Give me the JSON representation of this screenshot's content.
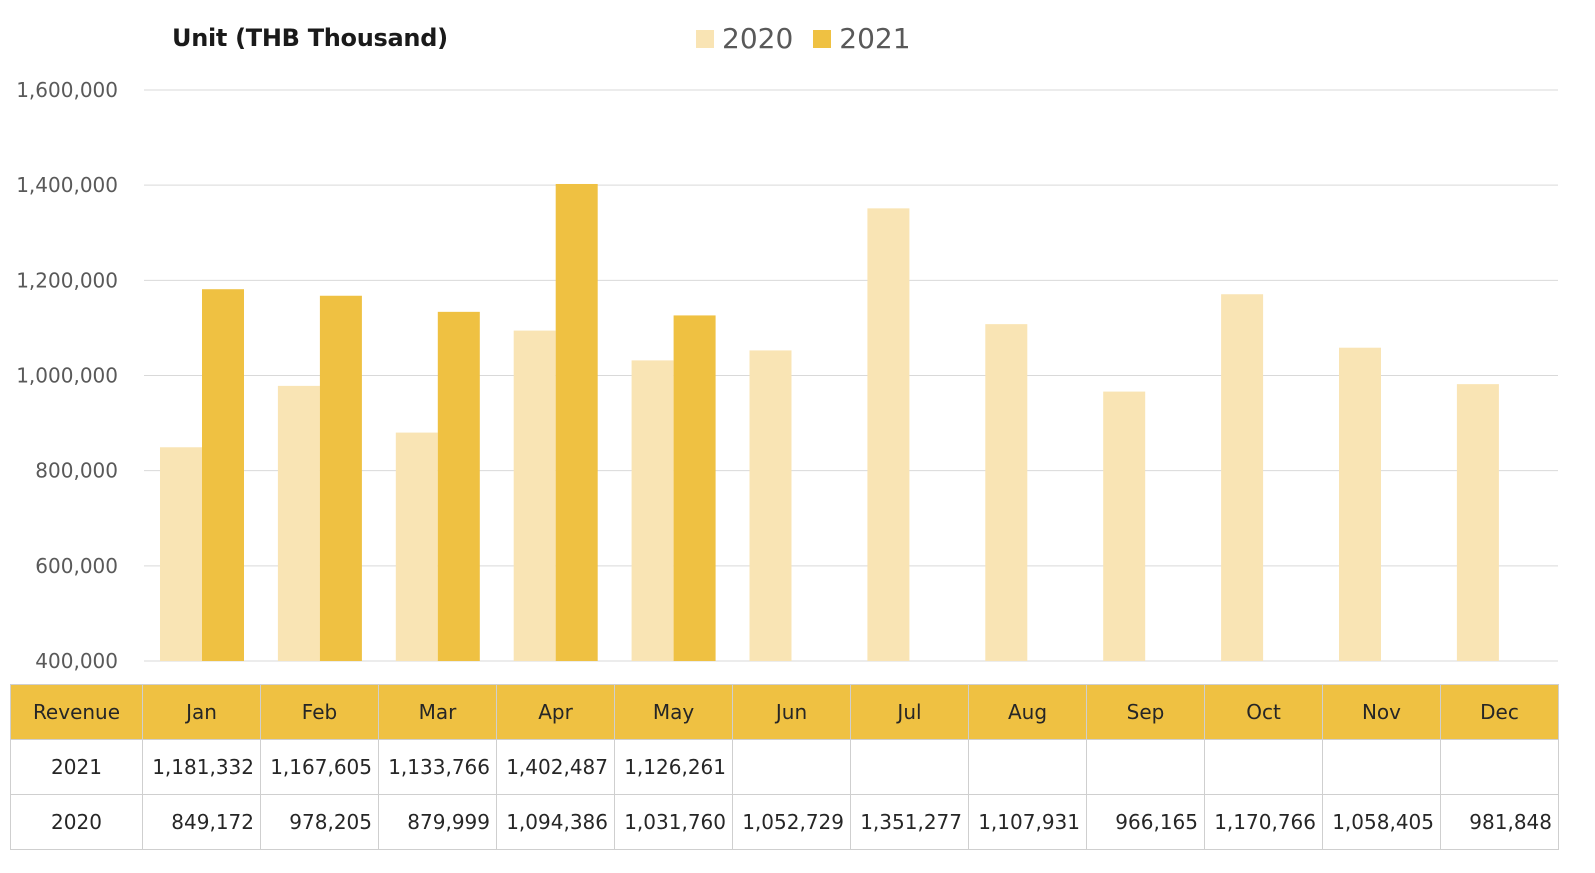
{
  "unit_label": "Unit (THB  Thousand)",
  "colors": {
    "series_2020": "#f9e4b4",
    "series_2021": "#efc142",
    "header_bg": "#efc142",
    "grid": "#d9d9d9",
    "axis_text": "#595959"
  },
  "legend": [
    "2020",
    "2021"
  ],
  "table": {
    "corner_label": "Revenue",
    "months": [
      "Jan",
      "Feb",
      "Mar",
      "Apr",
      "May",
      "Jun",
      "Jul",
      "Aug",
      "Sep",
      "Oct",
      "Nov",
      "Dec"
    ],
    "rows": [
      {
        "label": "2021",
        "cells": [
          "1,181,332",
          "1,167,605",
          "1,133,766",
          "1,402,487",
          "1,126,261",
          "",
          "",
          "",
          "",
          "",
          "",
          ""
        ]
      },
      {
        "label": "2020",
        "cells": [
          "849,172",
          "978,205",
          "879,999",
          "1,094,386",
          "1,031,760",
          "1,052,729",
          "1,351,277",
          "1,107,931",
          "966,165",
          "1,170,766",
          "1,058,405",
          "981,848"
        ]
      }
    ]
  },
  "chart_data": {
    "type": "bar",
    "title": "",
    "xlabel": "",
    "ylabel": "Unit (THB  Thousand)",
    "categories": [
      "Jan",
      "Feb",
      "Mar",
      "Apr",
      "May",
      "Jun",
      "Jul",
      "Aug",
      "Sep",
      "Oct",
      "Nov",
      "Dec"
    ],
    "series": [
      {
        "name": "2020",
        "values": [
          849172,
          978205,
          879999,
          1094386,
          1031760,
          1052729,
          1351277,
          1107931,
          966165,
          1170766,
          1058405,
          981848
        ]
      },
      {
        "name": "2021",
        "values": [
          1181332,
          1167605,
          1133766,
          1402487,
          1126261,
          null,
          null,
          null,
          null,
          null,
          null,
          null
        ]
      }
    ],
    "ylim": [
      400000,
      1600000
    ],
    "yticks": [
      400000,
      600000,
      800000,
      1000000,
      1200000,
      1400000,
      1600000
    ],
    "ytick_labels": [
      "400,000",
      "600,000",
      "800,000",
      "1,000,000",
      "1,200,000",
      "1,400,000",
      "1,600,000"
    ],
    "grid": true,
    "legend_position": "top-center"
  }
}
